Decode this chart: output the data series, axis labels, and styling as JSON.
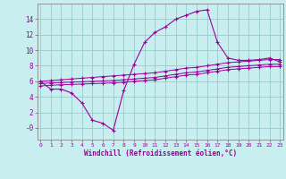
{
  "xlabel": "Windchill (Refroidissement éolien,°C)",
  "bg_color": "#c8eef0",
  "line_color": "#990099",
  "grid_color": "#99cccc",
  "x_values": [
    0,
    1,
    2,
    3,
    4,
    5,
    6,
    7,
    8,
    9,
    10,
    11,
    12,
    13,
    14,
    15,
    16,
    17,
    18,
    19,
    20,
    21,
    22,
    23
  ],
  "main_y": [
    6.0,
    5.0,
    5.0,
    4.5,
    3.2,
    1.0,
    0.6,
    -0.3,
    4.8,
    8.2,
    11.0,
    12.3,
    13.0,
    14.0,
    14.5,
    15.0,
    15.2,
    11.0,
    9.0,
    8.7,
    8.7,
    8.8,
    9.0,
    8.5
  ],
  "upper_y": [
    6.0,
    6.1,
    6.2,
    6.3,
    6.4,
    6.5,
    6.6,
    6.7,
    6.8,
    6.9,
    7.0,
    7.1,
    7.3,
    7.5,
    7.7,
    7.8,
    8.0,
    8.2,
    8.4,
    8.5,
    8.6,
    8.7,
    8.8,
    8.8
  ],
  "mid_y": [
    5.7,
    5.8,
    5.85,
    5.9,
    5.95,
    6.0,
    6.05,
    6.1,
    6.2,
    6.3,
    6.4,
    6.5,
    6.7,
    6.9,
    7.1,
    7.2,
    7.4,
    7.6,
    7.8,
    7.9,
    8.0,
    8.1,
    8.2,
    8.2
  ],
  "lower_y": [
    5.4,
    5.5,
    5.55,
    5.6,
    5.65,
    5.7,
    5.75,
    5.8,
    5.9,
    6.0,
    6.1,
    6.2,
    6.4,
    6.6,
    6.8,
    6.9,
    7.1,
    7.3,
    7.5,
    7.6,
    7.7,
    7.8,
    7.9,
    7.9
  ],
  "ylim": [
    -1.5,
    16
  ],
  "yticks": [
    0,
    2,
    4,
    6,
    8,
    10,
    12,
    14
  ],
  "ytick_labels": [
    "-0",
    "2",
    "4",
    "6",
    "8",
    "10",
    "12",
    "14"
  ],
  "xlim": [
    -0.3,
    23.3
  ],
  "xticks": [
    0,
    1,
    2,
    3,
    4,
    5,
    6,
    7,
    8,
    9,
    10,
    11,
    12,
    13,
    14,
    15,
    16,
    17,
    18,
    19,
    20,
    21,
    22,
    23
  ]
}
